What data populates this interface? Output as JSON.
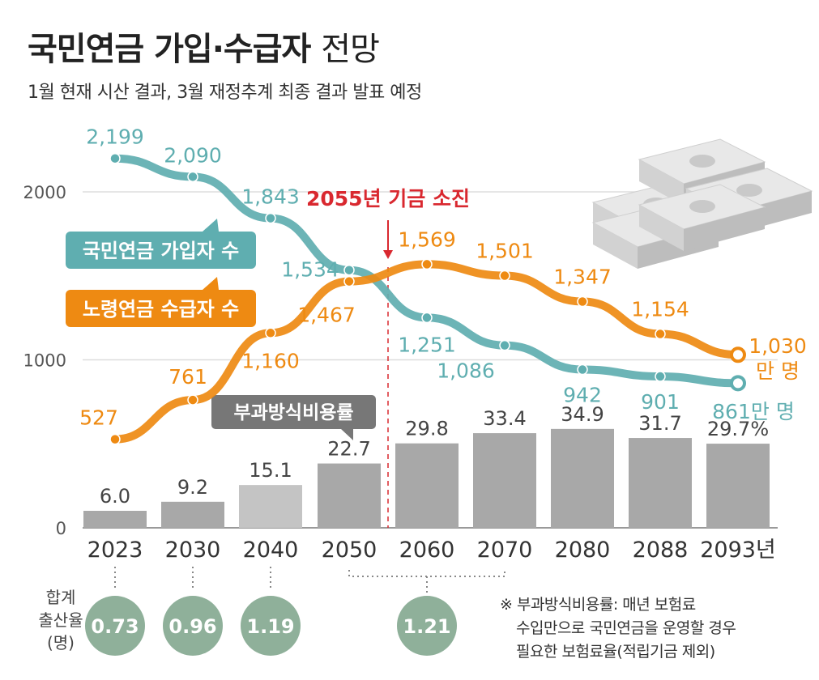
{
  "header": {
    "title_bold": "국민연금 가입·수급자",
    "title_thin": "전망",
    "subtitle": "1월 현재 시산 결과, 3월 재정추계 최종 결과 발표 예정"
  },
  "chart_data": {
    "type": "line",
    "title": "국민연금 가입·수급자 전망",
    "x_categories": [
      "2023",
      "2030",
      "2040",
      "2050",
      "2060",
      "2070",
      "2080",
      "2088",
      "2093년"
    ],
    "x_years": [
      2023,
      2030,
      2040,
      2050,
      2060,
      2070,
      2080,
      2088,
      2093
    ],
    "y_ticks": [
      0,
      1000,
      2000
    ],
    "y_tick_labels": [
      "0",
      "1000",
      "2000"
    ],
    "ylim": [
      0,
      2300
    ],
    "unit": "만 명",
    "series": [
      {
        "name": "국민연금 가입자 수",
        "color": "#5FAEB0",
        "values": [
          2199,
          2090,
          1843,
          1534,
          1251,
          1086,
          942,
          901,
          861
        ],
        "labels": [
          "2,199",
          "2,090",
          "1,843",
          "1,534",
          "1,251",
          "1,086",
          "942",
          "901",
          "861만 명"
        ]
      },
      {
        "name": "노령연금 수급자 수",
        "color": "#EE8A12",
        "values": [
          527,
          761,
          1160,
          1467,
          1569,
          1501,
          1347,
          1154,
          1030
        ],
        "labels": [
          "527",
          "761",
          "1,160",
          "1,467",
          "1,569",
          "1,501",
          "1,347",
          "1,154",
          "1,030"
        ],
        "last_unit": "만 명"
      }
    ],
    "annotation": {
      "text": "2055년 기금 소진",
      "year": 2055,
      "color": "#D9282F"
    },
    "bars": {
      "name": "부과방식비용률",
      "values": [
        6.0,
        9.2,
        15.1,
        22.7,
        29.8,
        33.4,
        34.9,
        31.7,
        29.7
      ],
      "labels": [
        "6.0",
        "9.2",
        "15.1",
        "22.7",
        "29.8",
        "33.4",
        "34.9",
        "31.7",
        "29.7%"
      ],
      "colors": [
        "#A8A8A8",
        "#A8A8A8",
        "#C4C4C4",
        "#A8A8A8",
        "#A8A8A8",
        "#A8A8A8",
        "#A8A8A8",
        "#A8A8A8",
        "#A8A8A8"
      ]
    },
    "fertility": {
      "label_lines": [
        "합계",
        "출산율",
        "(명)"
      ],
      "items": [
        {
          "year_index": 0,
          "value": "0.73"
        },
        {
          "year_index": 1,
          "value": "0.96"
        },
        {
          "year_index": 2,
          "value": "1.19"
        },
        {
          "year_index": 4,
          "value": "1.21",
          "span_from": 3,
          "span_to": 5
        }
      ],
      "color": "#8FB09A"
    }
  },
  "footnote": {
    "lines": [
      "※ 부과방식비용률: 매년 보험료",
      "수입만으로 국민연금을 운영할 경우",
      "필요한 보험료율(적립기금 제외)"
    ]
  }
}
